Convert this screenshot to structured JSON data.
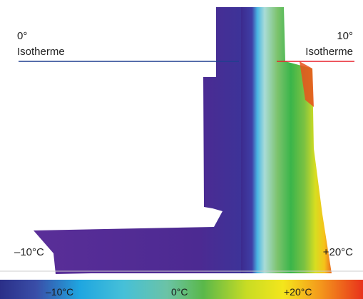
{
  "labels": {
    "left_isotherm_degree": "0°",
    "left_isotherm_word": "Isotherme",
    "right_isotherm_degree": "10°",
    "right_isotherm_word": "Isotherme",
    "outside_temp": "–10°C",
    "inside_temp": "+20°C"
  },
  "scale": {
    "labels": [
      "–10°C",
      "0°C",
      "+20°C"
    ]
  },
  "colors": {
    "isotherm_0": "#1f3f8f",
    "isotherm_10": "#e8212b",
    "cold": "#4a2a94",
    "zero": "#7ec8e8",
    "green": "#3ab54a",
    "yellow": "#f2e21d",
    "warm": "#e8521c"
  }
}
